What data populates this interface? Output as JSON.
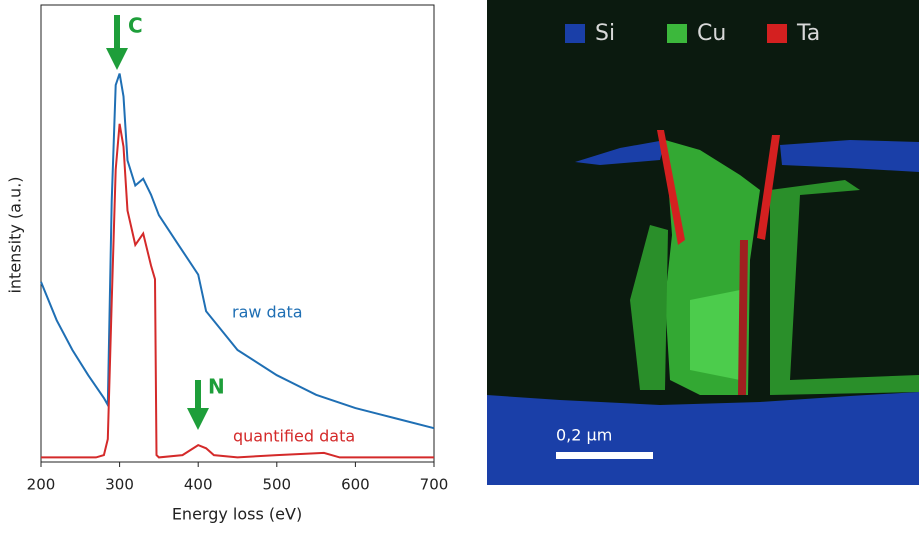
{
  "chart_data": {
    "type": "line",
    "xlabel": "Energy loss (eV)",
    "ylabel": "intensity (a.u.)",
    "xlim": [
      200,
      700
    ],
    "xticks": [
      200,
      300,
      400,
      500,
      600,
      700
    ],
    "ylim": [
      0,
      100
    ],
    "series": [
      {
        "name": "raw data",
        "color": "#1f6fb4",
        "x": [
          200,
          220,
          240,
          260,
          280,
          285,
          290,
          295,
          300,
          305,
          310,
          320,
          330,
          340,
          350,
          375,
          400,
          410,
          450,
          500,
          550,
          600,
          650,
          700
        ],
        "values": [
          39.4,
          31,
          24.5,
          19,
          14,
          12.5,
          57,
          82.5,
          85,
          80,
          66,
          60.5,
          62,
          58.5,
          54,
          47.5,
          41,
          33,
          24.5,
          19,
          14.7,
          11.8,
          9.6,
          7.4
        ]
      },
      {
        "name": "quantified data",
        "color": "#d42a2a",
        "x": [
          200,
          270,
          280,
          285,
          290,
          295,
          300,
          305,
          310,
          320,
          330,
          340,
          345,
          347,
          350,
          380,
          400,
          410,
          420,
          450,
          500,
          560,
          580,
          700
        ],
        "values": [
          1,
          1,
          1.5,
          5,
          35,
          64,
          74,
          69,
          55,
          47.5,
          50,
          43,
          40,
          1.5,
          1,
          1.5,
          3.7,
          3,
          1.5,
          1,
          1.5,
          2,
          1,
          1
        ]
      }
    ],
    "annotations": [
      "C",
      "N"
    ]
  },
  "image": {
    "legend": [
      {
        "label": "Si",
        "color": "#1a3fa8"
      },
      {
        "label": "Cu",
        "color": "#3cb83c"
      },
      {
        "label": "Ta",
        "color": "#d42020"
      }
    ],
    "scale_bar": "0,2 µm"
  }
}
